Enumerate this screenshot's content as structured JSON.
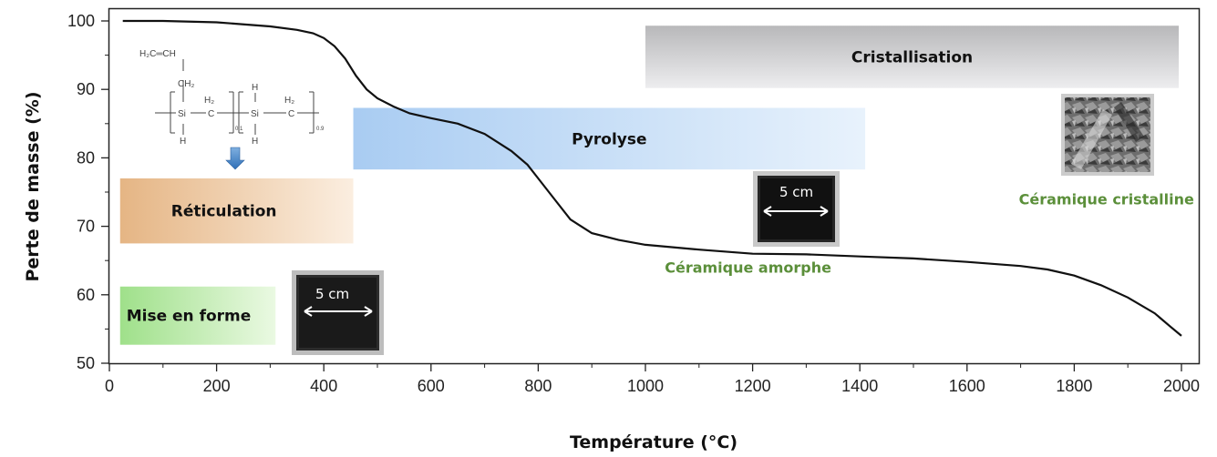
{
  "chart_data": {
    "type": "line",
    "xlabel": "Température (°C)",
    "ylabel": "Perte de masse (%)",
    "xlim": [
      0,
      2000
    ],
    "ylim": [
      50,
      102
    ],
    "xticks": [
      0,
      200,
      400,
      600,
      800,
      1000,
      1200,
      1400,
      1600,
      1800,
      2000
    ],
    "yticks": [
      50,
      60,
      70,
      80,
      90,
      100
    ],
    "grid": false,
    "series": [
      {
        "x": [
          25,
          100,
          200,
          300,
          350,
          380,
          400,
          420,
          440,
          460,
          480,
          500,
          530,
          560,
          600,
          650,
          700,
          750,
          780,
          800,
          830,
          860,
          880,
          900,
          950,
          1000,
          1100,
          1200,
          1300,
          1400,
          1500,
          1600,
          1700,
          1750,
          1800,
          1850,
          1900,
          1950,
          1980,
          2000
        ],
        "y": [
          100,
          100,
          99.8,
          99.2,
          98.7,
          98.2,
          97.5,
          96.3,
          94.5,
          92,
          90,
          88.7,
          87.5,
          86.5,
          85.8,
          85,
          83.5,
          81,
          79,
          77,
          74,
          71,
          70,
          69,
          68,
          67.3,
          66.6,
          66,
          65.9,
          65.6,
          65.3,
          64.8,
          64.2,
          63.7,
          62.8,
          61.4,
          59.6,
          57.3,
          55.3,
          54
        ]
      }
    ],
    "bands": [
      {
        "label": "Mise en forme",
        "x0": 20,
        "x1": 310,
        "y0": 52.7,
        "y1": 61.2,
        "color": "#c8f0b4"
      },
      {
        "label": "Réticulation",
        "x0": 20,
        "x1": 455,
        "y0": 67.5,
        "y1": 77,
        "color": "#f2c89c"
      },
      {
        "label": "Pyrolyse",
        "x0": 455,
        "x1": 1410,
        "y0": 78.3,
        "y1": 87.3,
        "color": "#c4dcf6"
      },
      {
        "label": "Cristallisation",
        "x0": 1000,
        "x1": 1995,
        "y0": 90.2,
        "y1": 99.3,
        "color": "#cfcfd1"
      }
    ],
    "annotations": [
      {
        "text": "Céramique amorphe",
        "x": 1200,
        "y": 63.2
      },
      {
        "text": "Céramique cristalline",
        "x": 1855,
        "y": 73.2
      }
    ],
    "scale_bar": "5 cm"
  },
  "chem": {
    "top": "H₂C═CH",
    "mid": "CH₂",
    "h2": "H₂",
    "si": "Si",
    "c": "C",
    "h": "H",
    "sub1": "0.1",
    "sub2": "0.9"
  }
}
